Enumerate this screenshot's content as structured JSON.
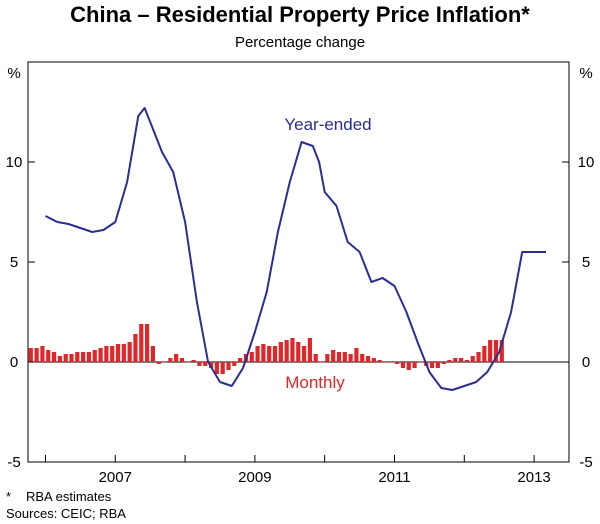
{
  "chart_data": {
    "type": "bar+line",
    "title": "China – Residential Property Price Inflation*",
    "subtitle": "Percentage change",
    "ylabel_left": "%",
    "ylabel_right": "%",
    "ylim": [
      -5,
      15
    ],
    "yticks": [
      -5,
      0,
      5,
      10
    ],
    "xlim": [
      2005.75,
      2013.5
    ],
    "xtick_labels": [
      "2007",
      "2009",
      "2011",
      "2013"
    ],
    "xtick_label_positions": [
      2007.0,
      2009.0,
      2011.0,
      2013.0
    ],
    "grid": false,
    "annotations": {
      "line": "Year-ended",
      "bars": "Monthly"
    },
    "series": [
      {
        "name": "Year-ended",
        "kind": "line",
        "color": "#2a2f8f",
        "x": [
          2006.0,
          2006.17,
          2006.33,
          2006.5,
          2006.67,
          2006.83,
          2007.0,
          2007.17,
          2007.33,
          2007.42,
          2007.5,
          2007.67,
          2007.83,
          2008.0,
          2008.17,
          2008.33,
          2008.5,
          2008.67,
          2008.83,
          2009.0,
          2009.17,
          2009.33,
          2009.5,
          2009.67,
          2009.83,
          2009.92,
          2010.0,
          2010.17,
          2010.33,
          2010.5,
          2010.67,
          2010.83,
          2011.0,
          2011.17,
          2011.33,
          2011.5,
          2011.67,
          2011.83,
          2012.0,
          2012.17,
          2012.33,
          2012.5,
          2012.67,
          2012.83,
          2013.0,
          2013.17
        ],
        "values": [
          7.3,
          7.0,
          6.9,
          6.7,
          6.5,
          6.6,
          7.0,
          9.0,
          12.3,
          12.7,
          12.0,
          10.5,
          9.5,
          7.0,
          3.0,
          0.0,
          -1.0,
          -1.2,
          -0.3,
          1.5,
          3.5,
          6.5,
          9.0,
          11.0,
          10.8,
          10.0,
          8.5,
          7.8,
          6.0,
          5.5,
          4.0,
          4.2,
          3.8,
          2.5,
          1.0,
          -0.5,
          -1.3,
          -1.4,
          -1.2,
          -1.0,
          -0.5,
          0.5,
          2.5,
          5.5,
          5.5,
          5.5
        ]
      },
      {
        "name": "Monthly",
        "kind": "bar",
        "color": "#e1262a",
        "x_start": 2005.79,
        "x_step": 0.0833,
        "values": [
          0.7,
          0.7,
          0.8,
          0.6,
          0.5,
          0.3,
          0.4,
          0.4,
          0.5,
          0.5,
          0.5,
          0.6,
          0.7,
          0.8,
          0.8,
          0.9,
          0.9,
          1.0,
          1.4,
          1.9,
          1.9,
          0.8,
          -0.1,
          0.0,
          0.2,
          0.4,
          0.2,
          0.0,
          0.1,
          -0.2,
          -0.2,
          -0.3,
          -0.6,
          -0.6,
          -0.4,
          -0.2,
          0.2,
          0.4,
          0.5,
          0.8,
          0.9,
          0.8,
          0.8,
          1.0,
          1.1,
          1.2,
          1.0,
          0.8,
          1.2,
          0.4,
          0.0,
          0.4,
          0.6,
          0.5,
          0.5,
          0.4,
          0.7,
          0.4,
          0.3,
          0.2,
          0.1,
          0.0,
          0.0,
          -0.1,
          -0.3,
          -0.4,
          -0.3,
          0.0,
          -0.2,
          -0.3,
          -0.3,
          -0.1,
          0.1,
          0.2,
          0.2,
          0.1,
          0.3,
          0.5,
          0.8,
          1.1,
          1.1,
          1.1
        ]
      }
    ]
  },
  "notes": {
    "footnote_marker": "*",
    "footnote_text": "RBA estimates",
    "sources": "Sources: CEIC; RBA"
  }
}
